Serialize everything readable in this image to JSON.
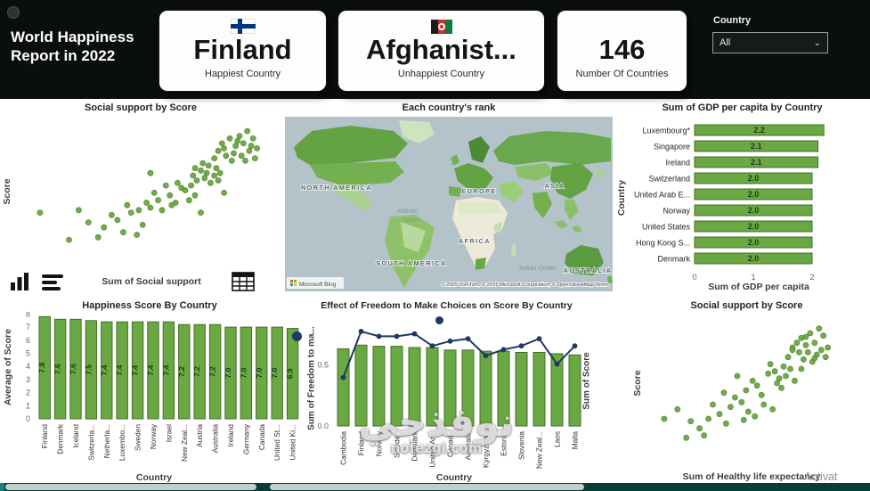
{
  "page": {
    "watermark_arabic": "نوفذجي",
    "watermark_latin": "nofezgi.com",
    "activation_text": "Activat"
  },
  "header": {
    "title_line1": "World Happiness",
    "title_line2": "Report in 2022",
    "cards": [
      {
        "value": "Finland",
        "label": "Happiest Country"
      },
      {
        "value": "Afghanist...",
        "label": "Unhappiest Country"
      },
      {
        "value": "146",
        "label": "Number Of Countries"
      }
    ],
    "filter_label": "Country",
    "filter_value": "All"
  },
  "colors": {
    "bar_green": "#6aa843",
    "bar_border": "#44702a",
    "line_navy": "#1f3864",
    "topbar_bg": "#0b0f0b",
    "ocean": "#b3c3c9"
  },
  "chart_data": [
    {
      "id": "scatter_social",
      "type": "scatter",
      "title": "Social support by Score",
      "xlabel": "Sum of Social support",
      "ylabel": "Score",
      "xlim": [
        0,
        1.25
      ],
      "ylim": [
        2.5,
        8.2
      ],
      "points": [
        [
          1.12,
          7.8
        ],
        [
          1.08,
          7.6
        ],
        [
          1.15,
          7.5
        ],
        [
          1.03,
          7.5
        ],
        [
          1.1,
          7.3
        ],
        [
          1.06,
          7.2
        ],
        [
          1.17,
          7.1
        ],
        [
          0.99,
          7.3
        ],
        [
          1.13,
          7.0
        ],
        [
          1.05,
          6.9
        ],
        [
          1.09,
          6.8
        ],
        [
          1.16,
          6.7
        ],
        [
          1.01,
          6.8
        ],
        [
          0.97,
          7.0
        ],
        [
          1.04,
          6.6
        ],
        [
          1.11,
          6.6
        ],
        [
          0.95,
          6.7
        ],
        [
          1.07,
          7.4
        ],
        [
          1.0,
          7.1
        ],
        [
          1.14,
          7.2
        ],
        [
          0.92,
          6.4
        ],
        [
          0.88,
          6.2
        ],
        [
          0.96,
          6.3
        ],
        [
          0.84,
          6.0
        ],
        [
          0.9,
          5.9
        ],
        [
          0.95,
          6.0
        ],
        [
          0.86,
          5.8
        ],
        [
          0.98,
          6.1
        ],
        [
          0.93,
          5.7
        ],
        [
          0.89,
          6.5
        ],
        [
          0.83,
          5.6
        ],
        [
          0.97,
          5.8
        ],
        [
          0.91,
          6.1
        ],
        [
          0.85,
          6.3
        ],
        [
          0.78,
          5.5
        ],
        [
          0.72,
          5.2
        ],
        [
          0.8,
          5.4
        ],
        [
          0.66,
          5.0
        ],
        [
          0.75,
          4.9
        ],
        [
          0.7,
          5.6
        ],
        [
          0.62,
          4.7
        ],
        [
          0.82,
          5.0
        ],
        [
          0.68,
          4.6
        ],
        [
          0.76,
          5.7
        ],
        [
          0.73,
          4.8
        ],
        [
          0.64,
          5.3
        ],
        [
          0.85,
          5.2
        ],
        [
          0.6,
          4.9
        ],
        [
          0.52,
          4.5
        ],
        [
          0.45,
          4.2
        ],
        [
          0.56,
          4.6
        ],
        [
          0.38,
          3.9
        ],
        [
          0.48,
          3.7
        ],
        [
          0.58,
          4.0
        ],
        [
          0.42,
          4.4
        ],
        [
          0.35,
          3.5
        ],
        [
          0.5,
          4.8
        ],
        [
          0.55,
          3.6
        ],
        [
          0.3,
          4.1
        ],
        [
          0.05,
          4.5
        ],
        [
          0.2,
          3.4
        ],
        [
          0.62,
          6.1
        ],
        [
          0.88,
          4.5
        ],
        [
          1.0,
          5.3
        ],
        [
          0.25,
          4.6
        ]
      ]
    },
    {
      "id": "map_rank",
      "type": "map",
      "title": "Each country's rank",
      "labels": {
        "north_america": "NORTH AMERICA",
        "south_america": "SOUTH AMERICA",
        "europe": "EUROPE",
        "asia": "ASIA",
        "africa": "AFRICA",
        "australia": "AUSTRALIA",
        "atlantic_1": "Atlantic",
        "atlantic_2": "Ocean",
        "indian": "Indian Ocean"
      },
      "provider": "Microsoft Bing",
      "attribution": "© 2025 TomTom, © 2025 Microsoft Corporation, © OpenStreetMap   Terms"
    },
    {
      "id": "bar_gdp",
      "type": "bar-horizontal",
      "title": "Sum of GDP per capita by Country",
      "xlabel": "Sum of GDP per capita",
      "ylabel": "Country",
      "categories": [
        "Luxembourg*",
        "Singapore",
        "Ireland",
        "Switzerland",
        "United Arab E...",
        "Norway",
        "United States",
        "Hong Kong S...",
        "Denmark"
      ],
      "values": [
        2.2,
        2.1,
        2.1,
        2.0,
        2.0,
        2.0,
        2.0,
        2.0,
        2.0
      ],
      "xticks": [
        0,
        1,
        2
      ],
      "xlim": [
        0,
        2.35
      ]
    },
    {
      "id": "bar_happiness",
      "type": "bar",
      "title": "Happiness Score By Country",
      "xlabel": "Country",
      "ylabel": "Average of Score",
      "ylim": [
        0,
        8
      ],
      "yticks": [
        0,
        1,
        2,
        3,
        4,
        5,
        6,
        7,
        8
      ],
      "categories": [
        "Finland",
        "Denmark",
        "Iceland",
        "Switzerla...",
        "Netherla...",
        "Luxembo...",
        "Sweden",
        "Norway",
        "Israel",
        "New Zeal...",
        "Austria",
        "Australia",
        "Ireland",
        "Germany",
        "Canada",
        "United St...",
        "United Ki..."
      ],
      "values": [
        7.8,
        7.6,
        7.6,
        7.5,
        7.4,
        7.4,
        7.4,
        7.4,
        7.4,
        7.2,
        7.2,
        7.2,
        7.0,
        7.0,
        7.0,
        7.0,
        6.9
      ]
    },
    {
      "id": "combo_freedom",
      "type": "combo",
      "title": "Effect of Freedom to Make Choices on Score By Country",
      "xlabel": "Country",
      "yticks_left": [
        "0.0",
        "0.5"
      ],
      "categories": [
        "Cambodia",
        "Finland",
        "Norway",
        "Sweden",
        "Denmark",
        "United Ar...",
        "Canada",
        "Australia",
        "Kyrgyzstan",
        "Estonia",
        "Slovenia",
        "New Zeal...",
        "Laos",
        "Malta"
      ],
      "series_bar": {
        "name": "Sum of Freedom to ma...",
        "values": [
          0.63,
          0.66,
          0.65,
          0.65,
          0.64,
          0.64,
          0.62,
          0.62,
          0.61,
          0.61,
          0.6,
          0.6,
          0.59,
          0.58
        ]
      },
      "series_line": {
        "name": "Sum of Score",
        "values": [
          4.0,
          7.8,
          7.4,
          7.4,
          7.6,
          6.6,
          7.0,
          7.2,
          5.8,
          6.3,
          6.6,
          7.2,
          5.1,
          6.6
        ]
      }
    },
    {
      "id": "scatter_health",
      "type": "scatter",
      "title": "Social support by Score",
      "xlabel": "Sum of Healthy life expectancy",
      "ylabel": "Score",
      "xlim": [
        0,
        0.95
      ],
      "ylim": [
        2.5,
        8.2
      ],
      "points": [
        [
          0.78,
          7.8
        ],
        [
          0.74,
          7.6
        ],
        [
          0.8,
          7.5
        ],
        [
          0.7,
          7.4
        ],
        [
          0.76,
          7.2
        ],
        [
          0.72,
          7.1
        ],
        [
          0.82,
          7.0
        ],
        [
          0.68,
          7.2
        ],
        [
          0.79,
          6.9
        ],
        [
          0.73,
          6.8
        ],
        [
          0.77,
          6.7
        ],
        [
          0.81,
          6.6
        ],
        [
          0.69,
          6.8
        ],
        [
          0.66,
          7.0
        ],
        [
          0.71,
          6.5
        ],
        [
          0.75,
          6.4
        ],
        [
          0.64,
          6.6
        ],
        [
          0.72,
          7.45
        ],
        [
          0.62,
          6.2
        ],
        [
          0.58,
          6.0
        ],
        [
          0.65,
          6.1
        ],
        [
          0.55,
          5.9
        ],
        [
          0.6,
          5.7
        ],
        [
          0.63,
          5.8
        ],
        [
          0.56,
          6.3
        ],
        [
          0.67,
          5.6
        ],
        [
          0.59,
          5.5
        ],
        [
          0.5,
          5.4
        ],
        [
          0.45,
          5.2
        ],
        [
          0.52,
          5.0
        ],
        [
          0.4,
          4.9
        ],
        [
          0.48,
          5.6
        ],
        [
          0.43,
          4.7
        ],
        [
          0.53,
          4.6
        ],
        [
          0.38,
          4.5
        ],
        [
          0.46,
          4.3
        ],
        [
          0.33,
          4.2
        ],
        [
          0.28,
          4.0
        ],
        [
          0.36,
          3.8
        ],
        [
          0.24,
          3.6
        ],
        [
          0.3,
          4.6
        ],
        [
          0.2,
          3.9
        ],
        [
          0.26,
          3.3
        ],
        [
          0.14,
          4.4
        ],
        [
          0.08,
          4.0
        ],
        [
          0.35,
          5.1
        ],
        [
          0.57,
          4.4
        ],
        [
          0.61,
          5.3
        ],
        [
          0.66,
          6.9
        ],
        [
          0.49,
          4.1
        ],
        [
          0.18,
          3.2
        ],
        [
          0.41,
          5.8
        ],
        [
          0.7,
          6.1
        ],
        [
          0.76,
          6.55
        ],
        [
          0.44,
          3.95
        ]
      ]
    }
  ]
}
